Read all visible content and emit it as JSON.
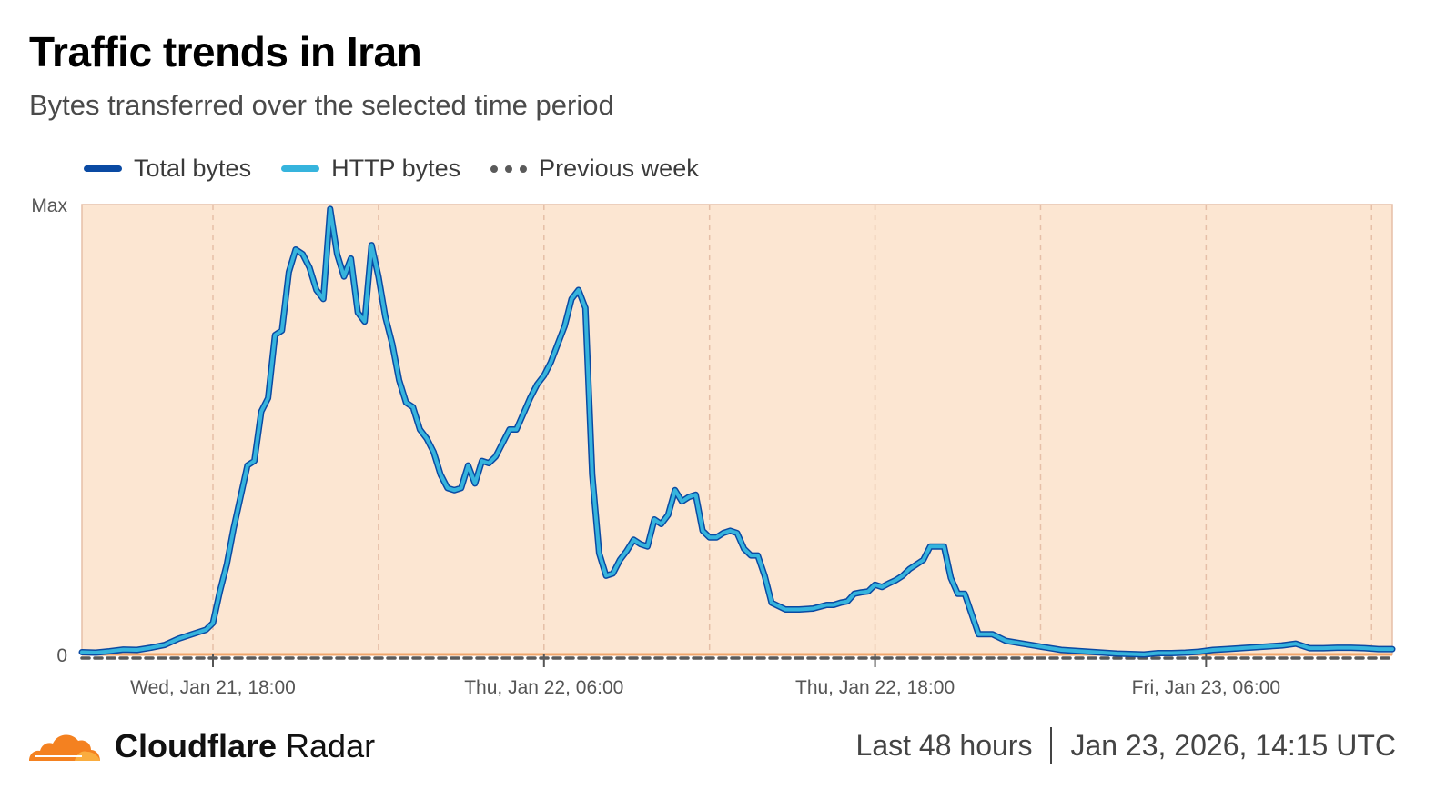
{
  "header": {
    "title": "Traffic trends in Iran",
    "subtitle": "Bytes transferred over the selected time period"
  },
  "legend": [
    {
      "label": "Total bytes",
      "color": "#0a4aa3",
      "style": "solid"
    },
    {
      "label": "HTTP bytes",
      "color": "#36b4dd",
      "style": "solid"
    },
    {
      "label": "Previous week",
      "color": "#5a5a5a",
      "style": "dashed"
    }
  ],
  "colors": {
    "plot_background": "#fce6d2",
    "grid": "#e6bfa7",
    "total_bytes": "#0a4aa3",
    "http_bytes": "#36b4dd",
    "previous_week": "#5a5a5a",
    "baseline": "#f0a56a"
  },
  "chart_data": {
    "type": "line",
    "title": "Traffic trends in Iran",
    "subtitle": "Bytes transferred over the selected time period",
    "y_tick_labels": [
      "0",
      "Max"
    ],
    "ylim": [
      0,
      1
    ],
    "x_unit": "hours since start of window",
    "xlim": [
      0,
      47.5
    ],
    "x_ticks": [
      {
        "x": 4.75,
        "label": "Wed, Jan 21, 18:00"
      },
      {
        "x": 16.75,
        "label": "Thu, Jan 22, 06:00"
      },
      {
        "x": 28.75,
        "label": "Thu, Jan 22, 18:00"
      },
      {
        "x": 40.75,
        "label": "Fri, Jan 23, 06:00"
      }
    ],
    "x_gridlines": [
      4.75,
      10.75,
      16.75,
      22.75,
      28.75,
      34.75,
      40.75,
      46.75
    ],
    "grid": true,
    "legend_position": "top-left",
    "series": [
      {
        "name": "Total bytes",
        "x": [
          0,
          0.5,
          1,
          1.5,
          2,
          2.5,
          3,
          3.5,
          4,
          4.5,
          4.75,
          5,
          5.25,
          5.5,
          5.75,
          6,
          6.25,
          6.5,
          6.75,
          7,
          7.25,
          7.5,
          7.75,
          8,
          8.25,
          8.5,
          8.75,
          9,
          9.25,
          9.5,
          9.75,
          10,
          10.25,
          10.5,
          10.75,
          11,
          11.25,
          11.5,
          11.75,
          12,
          12.25,
          12.5,
          12.75,
          13,
          13.25,
          13.5,
          13.75,
          14,
          14.25,
          14.5,
          14.75,
          15,
          15.25,
          15.5,
          15.75,
          16,
          16.25,
          16.5,
          16.75,
          17,
          17.25,
          17.5,
          17.75,
          18,
          18.25,
          18.5,
          18.75,
          19,
          19.25,
          19.5,
          19.75,
          20,
          20.25,
          20.5,
          20.75,
          21,
          21.25,
          21.5,
          21.75,
          22,
          22.25,
          22.5,
          22.75,
          23,
          23.25,
          23.5,
          23.75,
          24,
          24.25,
          24.5,
          24.75,
          25,
          25.5,
          26,
          26.5,
          27,
          27.25,
          27.5,
          27.75,
          28,
          28.25,
          28.5,
          28.75,
          29,
          29.25,
          29.5,
          29.75,
          30,
          30.25,
          30.5,
          30.75,
          31,
          31.25,
          31.5,
          31.75,
          32,
          32.5,
          33,
          33.5,
          34,
          34.5,
          35,
          35.5,
          36,
          36.5,
          37,
          37.5,
          38,
          38.5,
          39,
          39.5,
          40,
          40.5,
          41,
          41.5,
          42,
          42.5,
          43,
          43.5,
          44,
          44.5,
          45,
          45.5,
          46,
          46.5,
          47,
          47.5
        ],
        "y": [
          0.005,
          0.004,
          0.007,
          0.011,
          0.01,
          0.015,
          0.021,
          0.035,
          0.045,
          0.055,
          0.07,
          0.14,
          0.2,
          0.28,
          0.35,
          0.42,
          0.43,
          0.54,
          0.57,
          0.71,
          0.72,
          0.85,
          0.9,
          0.89,
          0.86,
          0.81,
          0.79,
          0.99,
          0.89,
          0.84,
          0.88,
          0.76,
          0.74,
          0.91,
          0.84,
          0.75,
          0.69,
          0.61,
          0.56,
          0.55,
          0.5,
          0.48,
          0.45,
          0.4,
          0.37,
          0.365,
          0.37,
          0.42,
          0.38,
          0.43,
          0.425,
          0.44,
          0.47,
          0.5,
          0.5,
          0.535,
          0.57,
          0.6,
          0.62,
          0.65,
          0.69,
          0.73,
          0.79,
          0.81,
          0.77,
          0.4,
          0.225,
          0.175,
          0.18,
          0.21,
          0.23,
          0.255,
          0.245,
          0.24,
          0.3,
          0.29,
          0.31,
          0.365,
          0.34,
          0.35,
          0.355,
          0.275,
          0.26,
          0.26,
          0.27,
          0.275,
          0.27,
          0.235,
          0.22,
          0.22,
          0.175,
          0.115,
          0.1,
          0.1,
          0.102,
          0.11,
          0.11,
          0.115,
          0.118,
          0.135,
          0.138,
          0.14,
          0.155,
          0.15,
          0.158,
          0.165,
          0.175,
          0.19,
          0.2,
          0.21,
          0.24,
          0.24,
          0.24,
          0.17,
          0.135,
          0.135,
          0.045,
          0.045,
          0.03,
          0.025,
          0.02,
          0.015,
          0.01,
          0.008,
          0.006,
          0.004,
          0.002,
          0.001,
          0.0,
          0.003,
          0.003,
          0.004,
          0.006,
          0.01,
          0.012,
          0.014,
          0.016,
          0.018,
          0.02,
          0.024,
          0.014,
          0.014,
          0.015,
          0.015,
          0.014,
          0.012,
          0.012
        ]
      },
      {
        "name": "HTTP bytes",
        "x": [
          0,
          0.5,
          1,
          1.5,
          2,
          2.5,
          3,
          3.5,
          4,
          4.5,
          4.75,
          5,
          5.25,
          5.5,
          5.75,
          6,
          6.25,
          6.5,
          6.75,
          7,
          7.25,
          7.5,
          7.75,
          8,
          8.25,
          8.5,
          8.75,
          9,
          9.25,
          9.5,
          9.75,
          10,
          10.25,
          10.5,
          10.75,
          11,
          11.25,
          11.5,
          11.75,
          12,
          12.25,
          12.5,
          12.75,
          13,
          13.25,
          13.5,
          13.75,
          14,
          14.25,
          14.5,
          14.75,
          15,
          15.25,
          15.5,
          15.75,
          16,
          16.25,
          16.5,
          16.75,
          17,
          17.25,
          17.5,
          17.75,
          18,
          18.25,
          18.5,
          18.75,
          19,
          19.25,
          19.5,
          19.75,
          20,
          20.25,
          20.5,
          20.75,
          21,
          21.25,
          21.5,
          21.75,
          22,
          22.25,
          22.5,
          22.75,
          23,
          23.25,
          23.5,
          23.75,
          24,
          24.25,
          24.5,
          24.75,
          25,
          25.5,
          26,
          26.5,
          27,
          27.25,
          27.5,
          27.75,
          28,
          28.25,
          28.5,
          28.75,
          29,
          29.25,
          29.5,
          29.75,
          30,
          30.25,
          30.5,
          30.75,
          31,
          31.25,
          31.5,
          31.75,
          32,
          32.5,
          33,
          33.5,
          34,
          34.5,
          35,
          35.5,
          36,
          36.5,
          37,
          37.5,
          38,
          38.5,
          39,
          39.5,
          40,
          40.5,
          41,
          41.5,
          42,
          42.5,
          43,
          43.5,
          44,
          44.5,
          45,
          45.5,
          46,
          46.5,
          47,
          47.5
        ],
        "y": [
          0.005,
          0.004,
          0.007,
          0.011,
          0.01,
          0.015,
          0.021,
          0.035,
          0.045,
          0.055,
          0.07,
          0.14,
          0.2,
          0.28,
          0.35,
          0.42,
          0.43,
          0.54,
          0.57,
          0.71,
          0.72,
          0.85,
          0.9,
          0.89,
          0.86,
          0.81,
          0.79,
          0.99,
          0.89,
          0.84,
          0.88,
          0.76,
          0.74,
          0.91,
          0.84,
          0.75,
          0.69,
          0.61,
          0.56,
          0.55,
          0.5,
          0.48,
          0.45,
          0.4,
          0.37,
          0.365,
          0.37,
          0.42,
          0.38,
          0.43,
          0.425,
          0.44,
          0.47,
          0.5,
          0.5,
          0.535,
          0.57,
          0.6,
          0.62,
          0.65,
          0.69,
          0.73,
          0.79,
          0.81,
          0.77,
          0.4,
          0.225,
          0.175,
          0.18,
          0.21,
          0.23,
          0.255,
          0.245,
          0.24,
          0.3,
          0.29,
          0.31,
          0.365,
          0.34,
          0.35,
          0.355,
          0.275,
          0.26,
          0.26,
          0.27,
          0.275,
          0.27,
          0.235,
          0.22,
          0.22,
          0.175,
          0.115,
          0.1,
          0.1,
          0.102,
          0.11,
          0.11,
          0.115,
          0.118,
          0.135,
          0.138,
          0.14,
          0.155,
          0.15,
          0.158,
          0.165,
          0.175,
          0.19,
          0.2,
          0.21,
          0.24,
          0.24,
          0.24,
          0.17,
          0.135,
          0.135,
          0.045,
          0.045,
          0.03,
          0.025,
          0.02,
          0.015,
          0.01,
          0.008,
          0.006,
          0.004,
          0.002,
          0.001,
          0.0,
          0.003,
          0.003,
          0.004,
          0.006,
          0.01,
          0.012,
          0.014,
          0.016,
          0.018,
          0.02,
          0.024,
          0.014,
          0.014,
          0.015,
          0.015,
          0.014,
          0.012,
          0.012
        ]
      },
      {
        "name": "Previous week",
        "x": [
          0,
          47.5
        ],
        "y": [
          -0.008,
          -0.008
        ]
      }
    ]
  },
  "footer": {
    "brand_bold": "Cloudflare",
    "brand_regular": "Radar",
    "period": "Last 48 hours",
    "timestamp": "Jan 23, 2026, 14:15 UTC"
  }
}
